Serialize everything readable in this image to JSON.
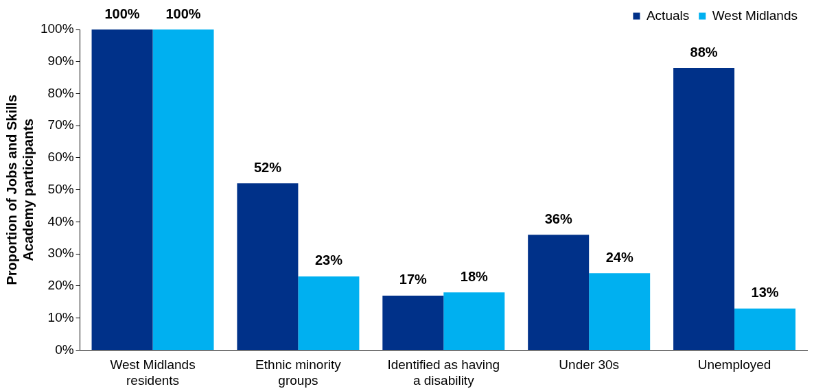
{
  "chart_data": {
    "type": "bar",
    "ylabel": "Proportion of Jobs and Skills Academy participants",
    "categories": [
      "West Midlands residents",
      "Ethnic minority groups",
      "Identified as having a disability",
      "Under 30s",
      "Unemployed"
    ],
    "series": [
      {
        "name": "Actuals",
        "color": "#003189",
        "values": [
          100,
          52,
          17,
          36,
          88
        ],
        "value_labels": [
          "100%",
          "52%",
          "17%",
          "36%",
          "88%"
        ]
      },
      {
        "name": "West Midlands",
        "color": "#00b0f0",
        "values": [
          100,
          23,
          18,
          24,
          13
        ],
        "value_labels": [
          "100%",
          "23%",
          "18%",
          "24%",
          "13%"
        ]
      }
    ],
    "ylim": [
      0,
      100
    ],
    "yticks": [
      {
        "value": 0,
        "label": "0%"
      },
      {
        "value": 10,
        "label": "10%"
      },
      {
        "value": 20,
        "label": "20%"
      },
      {
        "value": 30,
        "label": "30%"
      },
      {
        "value": 40,
        "label": "40%"
      },
      {
        "value": 50,
        "label": "50%"
      },
      {
        "value": 60,
        "label": "60%"
      },
      {
        "value": 70,
        "label": "70%"
      },
      {
        "value": 80,
        "label": "80%"
      },
      {
        "value": 90,
        "label": "90%"
      },
      {
        "value": 100,
        "label": "100%"
      }
    ],
    "grid": false,
    "legend": "top right"
  }
}
